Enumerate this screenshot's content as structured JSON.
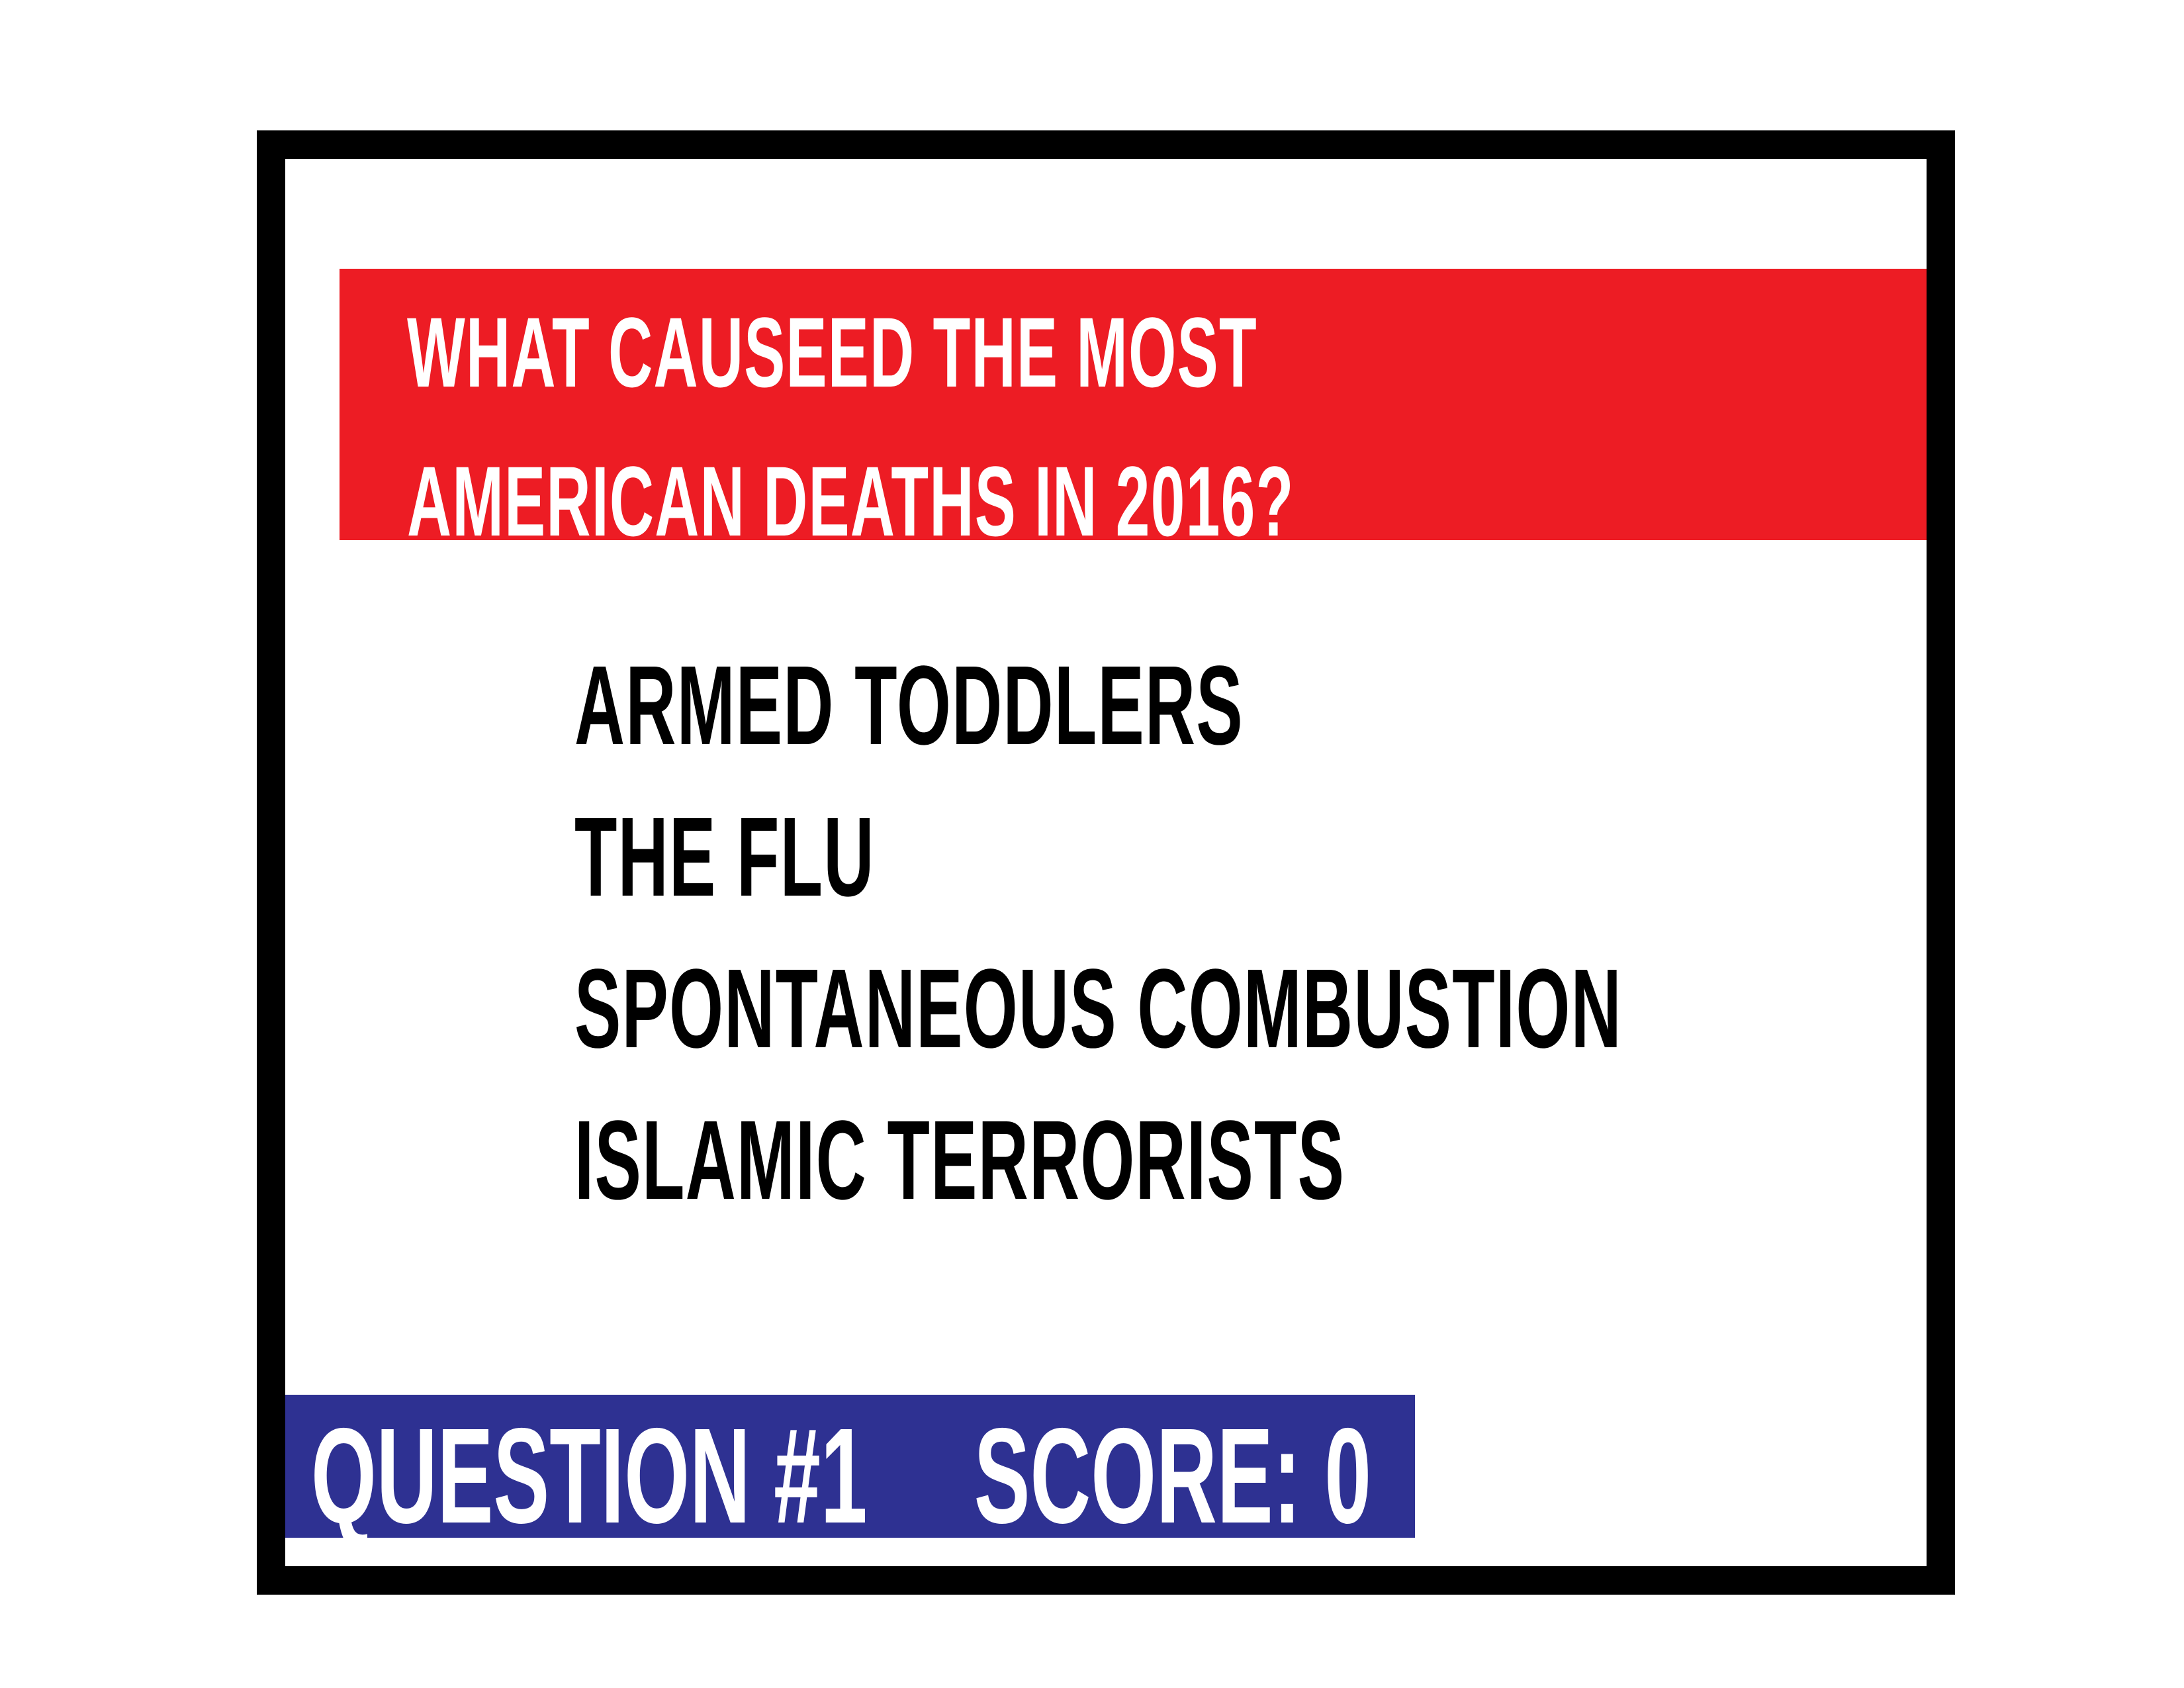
{
  "question": {
    "line1": "WHAT CAUSEED THE MOST",
    "line2": "AMERICAN DEATHS IN 2016?"
  },
  "answers": [
    {
      "label": "ARMED TODDLERS"
    },
    {
      "label": "THE FLU"
    },
    {
      "label": "SPONTANEOUS COMBUSTION"
    },
    {
      "label": "ISLAMIC TERRORISTS"
    }
  ],
  "status": {
    "question_number": "QUESTION #1",
    "score": "SCORE: 0"
  },
  "colors": {
    "frame": "#000000",
    "question_banner": "#ed1c24",
    "status_bar": "#2e3192",
    "answer_text": "#000000",
    "banner_text": "#ffffff"
  }
}
